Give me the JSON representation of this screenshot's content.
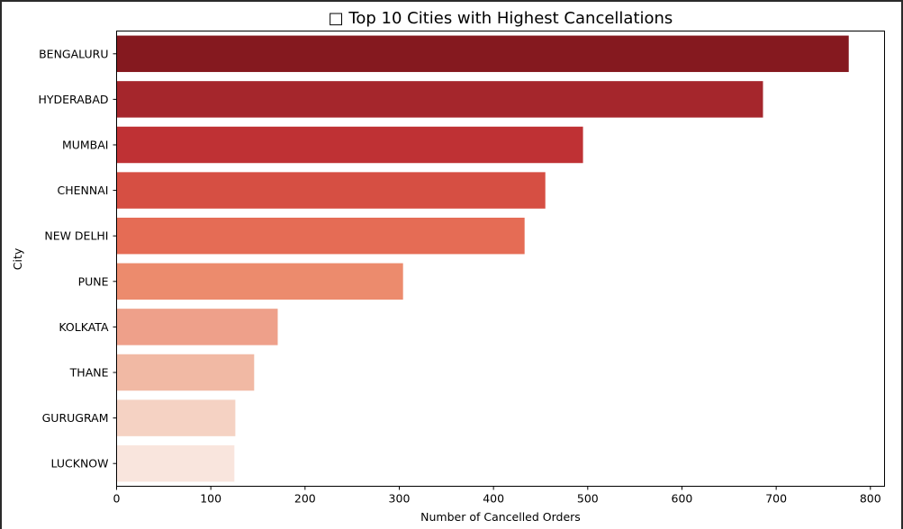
{
  "chart_data": {
    "type": "bar",
    "orientation": "horizontal",
    "title": "□ Top 10 Cities with Highest Cancellations",
    "xlabel": "Number of Cancelled Orders",
    "ylabel": "City",
    "xlim": [
      0,
      815
    ],
    "xticks": [
      0,
      100,
      200,
      300,
      400,
      500,
      600,
      700,
      800
    ],
    "categories": [
      "BENGALURU",
      "HYDERABAD",
      "MUMBAI",
      "CHENNAI",
      "NEW DELHI",
      "PUNE",
      "KOLKATA",
      "THANE",
      "GURUGRAM",
      "LUCKNOW"
    ],
    "values": [
      777,
      686,
      495,
      455,
      433,
      304,
      171,
      146,
      126,
      125
    ],
    "colors": [
      "#85191f",
      "#a5262c",
      "#bf3134",
      "#d64f43",
      "#e56c55",
      "#ec8b6d",
      "#eea08a",
      "#f1b9a4",
      "#f5d2c3",
      "#f9e5dd"
    ],
    "grid": false,
    "legend": "none"
  }
}
